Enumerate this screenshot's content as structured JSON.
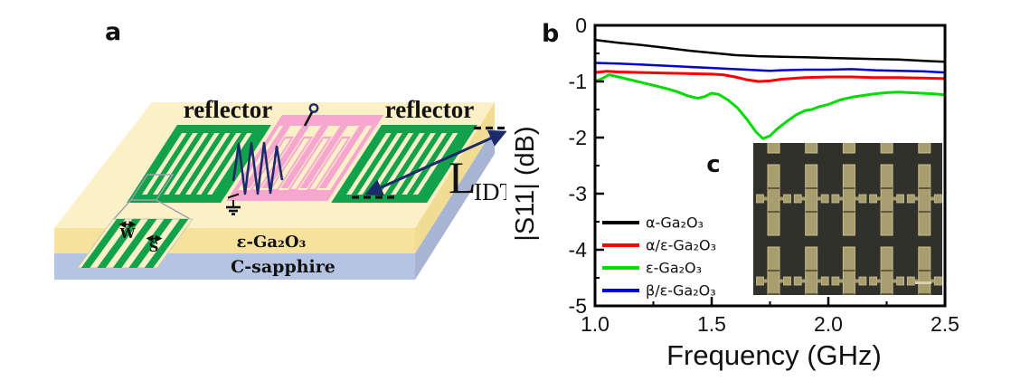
{
  "panel_a": {
    "label": "a",
    "reflector_left": "reflector",
    "reflector_right": "reflector",
    "l_idt": {
      "main": "L",
      "sub": "IDT"
    },
    "layer_top": "ε-Ga₂O₃",
    "layer_bottom": "C-sapphire",
    "electrode_width": "W",
    "electrode_spacing": "S",
    "colors": {
      "surface_cream": "#FBF0C8",
      "ga2o3_layer": "#F7E29B",
      "sapphire_layer": "#B5C4E2",
      "sapphire_side": "#A7B5D2",
      "reflector_green": "#12A24C",
      "idt_pink": "#F7A6CF",
      "wave_navy": "#1B2A6B"
    }
  },
  "panel_b": {
    "label": "b",
    "inset": {
      "label": "c",
      "bg": "#31312C",
      "device_fill": "#A89D6F",
      "device_edge": "#CBBF8F",
      "divider": "#4A4534",
      "scalebar": "#D8D0B0",
      "columns": 5
    }
  },
  "chart_data": {
    "type": "line",
    "title": "",
    "xlabel": "Frequency (GHz)",
    "ylabel": "|S11| (dB)",
    "xlim": [
      1.0,
      2.5
    ],
    "ylim": [
      -5,
      0
    ],
    "grid": false,
    "legend_position": "lower left",
    "x_ticks": [
      1.0,
      1.5,
      2.0,
      2.5
    ],
    "x_tick_labels": [
      "1.0",
      "1.5",
      "2.0",
      "2.5"
    ],
    "x_minor_ticks": [
      1.25,
      1.75,
      2.25
    ],
    "y_ticks": [
      0,
      -1,
      -2,
      -3,
      -4,
      -5
    ],
    "y_tick_labels": [
      "0",
      "-1",
      "-2",
      "-3",
      "-4",
      "-5"
    ],
    "y_minor_ticks": [
      -0.5,
      -1.5,
      -2.5,
      -3.5,
      -4.5
    ],
    "series": [
      {
        "id": "alpha",
        "name": "α-Ga₂O₃",
        "color": "#000000",
        "width": 2.5,
        "x": [
          1.0,
          1.1,
          1.2,
          1.3,
          1.4,
          1.5,
          1.6,
          1.7,
          1.8,
          1.9,
          2.0,
          2.1,
          2.2,
          2.3,
          2.4,
          2.5
        ],
        "y": [
          -0.26,
          -0.31,
          -0.35,
          -0.4,
          -0.45,
          -0.49,
          -0.53,
          -0.55,
          -0.56,
          -0.57,
          -0.58,
          -0.59,
          -0.6,
          -0.61,
          -0.63,
          -0.65
        ]
      },
      {
        "id": "alpha-eps",
        "name": "α/ε-Ga₂O₃",
        "color": "#FF0000",
        "width": 3,
        "x": [
          1.0,
          1.05,
          1.1,
          1.2,
          1.3,
          1.4,
          1.5,
          1.55,
          1.6,
          1.65,
          1.7,
          1.75,
          1.8,
          1.9,
          2.0,
          2.1,
          2.2,
          2.3,
          2.4,
          2.5
        ],
        "y": [
          -0.84,
          -0.82,
          -0.83,
          -0.84,
          -0.85,
          -0.86,
          -0.87,
          -0.88,
          -0.92,
          -0.97,
          -1.0,
          -0.99,
          -0.96,
          -0.93,
          -0.92,
          -0.92,
          -0.93,
          -0.93,
          -0.94,
          -0.95
        ]
      },
      {
        "id": "eps",
        "name": "ε-Ga₂O₃",
        "color": "#00DC00",
        "width": 3,
        "x": [
          1.0,
          1.03,
          1.06,
          1.1,
          1.15,
          1.2,
          1.25,
          1.3,
          1.35,
          1.4,
          1.44,
          1.47,
          1.5,
          1.53,
          1.57,
          1.61,
          1.65,
          1.69,
          1.72,
          1.75,
          1.78,
          1.82,
          1.86,
          1.9,
          1.93,
          1.96,
          2.0,
          2.05,
          2.1,
          2.15,
          2.2,
          2.25,
          2.3,
          2.35,
          2.4,
          2.45,
          2.5
        ],
        "y": [
          -1.0,
          -0.95,
          -0.88,
          -0.92,
          -0.97,
          -1.02,
          -1.07,
          -1.12,
          -1.18,
          -1.26,
          -1.3,
          -1.27,
          -1.21,
          -1.23,
          -1.33,
          -1.47,
          -1.67,
          -1.9,
          -2.02,
          -1.97,
          -1.85,
          -1.72,
          -1.6,
          -1.52,
          -1.5,
          -1.45,
          -1.41,
          -1.33,
          -1.28,
          -1.25,
          -1.22,
          -1.2,
          -1.19,
          -1.2,
          -1.21,
          -1.22,
          -1.24
        ]
      },
      {
        "id": "beta-eps",
        "name": "β/ε-Ga₂O₃",
        "color": "#0000DD",
        "width": 2.5,
        "x": [
          1.0,
          1.1,
          1.2,
          1.3,
          1.4,
          1.5,
          1.6,
          1.7,
          1.75,
          1.8,
          1.9,
          2.0,
          2.1,
          2.2,
          2.3,
          2.4,
          2.5
        ],
        "y": [
          -0.67,
          -0.68,
          -0.7,
          -0.72,
          -0.74,
          -0.76,
          -0.78,
          -0.8,
          -0.81,
          -0.8,
          -0.79,
          -0.79,
          -0.78,
          -0.8,
          -0.81,
          -0.82,
          -0.84
        ]
      }
    ]
  }
}
